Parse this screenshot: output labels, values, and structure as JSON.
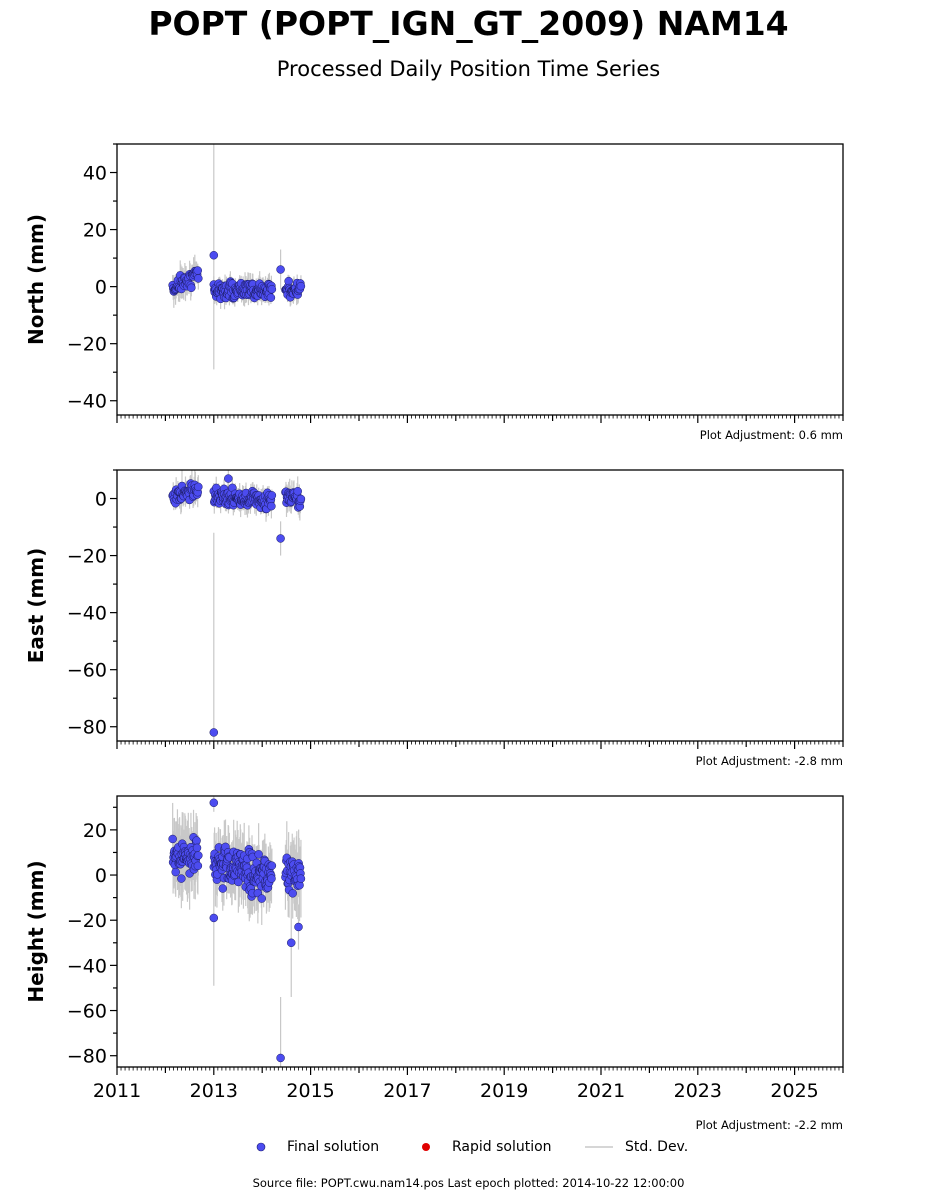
{
  "header": {
    "title": "POPT (POPT_IGN_GT_2009) NAM14",
    "subtitle": "Processed Daily Position Time Series"
  },
  "legend": {
    "final": "Final solution",
    "rapid": "Rapid solution",
    "std": "Std. Dev."
  },
  "colors": {
    "final": "#4c4cf0",
    "rapid": "#e00000",
    "std": "#c8c8c8"
  },
  "footer": {
    "source": "Source file: POPT.cwu.nam14.pos  Last epoch plotted: 2014-10-22 12:00:00"
  },
  "chart_data": [
    {
      "type": "scatter",
      "ylabel": "North (mm)",
      "ylim": [
        -45,
        50
      ],
      "yticks": [
        -40,
        -20,
        0,
        20,
        40
      ],
      "xlim": [
        2011,
        2026
      ],
      "adjustment": "Plot Adjustment: 0.6 mm",
      "segments": [
        {
          "x0": 2012.15,
          "x1": 2012.68,
          "n": 45,
          "center": 2,
          "trend": 5,
          "amp": 3,
          "err": 4
        },
        {
          "x0": 2013.0,
          "x1": 2014.2,
          "n": 120,
          "center": -1,
          "trend": 0,
          "amp": 3,
          "err": 3
        },
        {
          "x0": 2014.48,
          "x1": 2014.8,
          "n": 30,
          "center": -1,
          "trend": 1,
          "amp": 3,
          "err": 3
        }
      ],
      "outliers": [
        {
          "x": 2013.0,
          "y": 11,
          "err": 40
        },
        {
          "x": 2014.38,
          "y": 6,
          "err": 7
        }
      ]
    },
    {
      "type": "scatter",
      "ylabel": "East (mm)",
      "ylim": [
        -85,
        10
      ],
      "yticks": [
        -80,
        -60,
        -40,
        -20,
        0
      ],
      "xlim": [
        2011,
        2026
      ],
      "adjustment": "Plot Adjustment: -2.8 mm",
      "segments": [
        {
          "x0": 2012.15,
          "x1": 2012.68,
          "n": 45,
          "center": 2,
          "trend": 3,
          "amp": 3,
          "err": 4
        },
        {
          "x0": 2013.0,
          "x1": 2014.2,
          "n": 120,
          "center": 0,
          "trend": -2,
          "amp": 3,
          "err": 3
        },
        {
          "x0": 2014.48,
          "x1": 2014.8,
          "n": 30,
          "center": 0,
          "trend": -2,
          "amp": 3,
          "err": 4
        }
      ],
      "outliers": [
        {
          "x": 2013.0,
          "y": -82,
          "err": 70
        },
        {
          "x": 2014.38,
          "y": -14,
          "err": 6
        },
        {
          "x": 2013.3,
          "y": 7,
          "err": 3
        }
      ]
    },
    {
      "type": "scatter",
      "ylabel": "Height (mm)",
      "ylim": [
        -85,
        35
      ],
      "yticks": [
        -80,
        -60,
        -40,
        -20,
        0,
        20
      ],
      "xlim": [
        2011,
        2026
      ],
      "xticks": [
        "2011",
        "2013",
        "2015",
        "2017",
        "2019",
        "2021",
        "2023",
        "2025"
      ],
      "adjustment": "Plot Adjustment: -2.2 mm",
      "segments": [
        {
          "x0": 2012.15,
          "x1": 2012.68,
          "n": 60,
          "center": 8,
          "trend": 0,
          "amp": 9,
          "err": 12
        },
        {
          "x0": 2013.0,
          "x1": 2014.2,
          "n": 150,
          "center": 2,
          "trend": -6,
          "amp": 9,
          "err": 10
        },
        {
          "x0": 2014.48,
          "x1": 2014.8,
          "n": 35,
          "center": 0,
          "trend": -4,
          "amp": 9,
          "err": 12
        }
      ],
      "outliers": [
        {
          "x": 2013.0,
          "y": 32,
          "err": 4
        },
        {
          "x": 2013.0,
          "y": -19,
          "err": 30
        },
        {
          "x": 2014.38,
          "y": -81,
          "err": 27
        },
        {
          "x": 2014.6,
          "y": -30,
          "err": 24
        },
        {
          "x": 2014.75,
          "y": -23,
          "err": 10
        }
      ]
    }
  ]
}
